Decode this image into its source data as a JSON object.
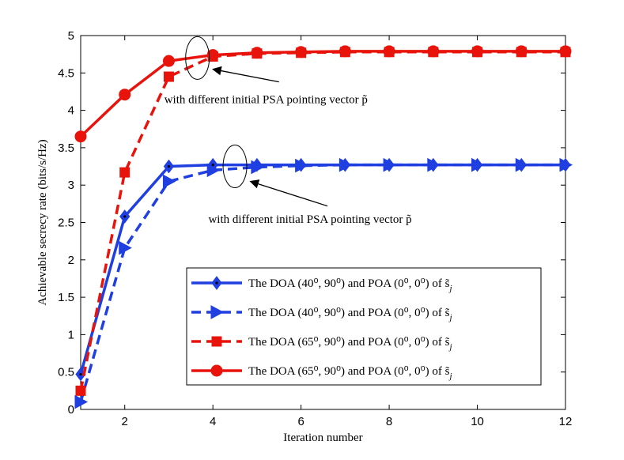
{
  "chart_data": {
    "type": "line",
    "title": "",
    "xlabel": "Iteration number",
    "ylabel": "Achievable secrecy rate (bits/s/Hz)",
    "xlim": [
      1,
      12
    ],
    "ylim": [
      0,
      5
    ],
    "xticks": [
      2,
      4,
      6,
      8,
      10,
      12
    ],
    "yticks": [
      0,
      0.5,
      1,
      1.5,
      2,
      2.5,
      3,
      3.5,
      4,
      4.5,
      5
    ],
    "grid": false,
    "legend_position": "bottom-right",
    "x": [
      1,
      2,
      3,
      4,
      5,
      6,
      7,
      8,
      9,
      10,
      11,
      12
    ],
    "series": [
      {
        "name": "The DOA (40^0, 90^0) and POA (0^0, 0^0) of s~_j",
        "legend_text": "The DOA (40⁰, 90⁰) and POA (0⁰, 0⁰) of s̃",
        "color": "#1f3fe0",
        "line": "solid",
        "marker": "diamond",
        "values": [
          0.47,
          2.58,
          3.25,
          3.27,
          3.27,
          3.27,
          3.27,
          3.27,
          3.27,
          3.27,
          3.27,
          3.27
        ]
      },
      {
        "name": "The DOA (40^0, 90^0) and POA (0^0, 0^0) of s~_j",
        "legend_text": "The DOA (40⁰, 90⁰) and POA (0⁰, 0⁰) of s̃",
        "color": "#1f3fe0",
        "line": "dashed",
        "marker": "triangle-right",
        "values": [
          0.1,
          2.16,
          3.05,
          3.2,
          3.24,
          3.26,
          3.27,
          3.27,
          3.27,
          3.27,
          3.27,
          3.27
        ]
      },
      {
        "name": "The DOA (65^0, 90^0) and POA (0^0, 0^0) of s~_j",
        "legend_text": "The DOA (65⁰, 90⁰) and POA (0⁰, 0⁰) of s̃",
        "color": "#e8140c",
        "line": "dashed",
        "marker": "square",
        "values": [
          0.25,
          3.17,
          4.45,
          4.72,
          4.76,
          4.77,
          4.78,
          4.78,
          4.78,
          4.78,
          4.78,
          4.78
        ]
      },
      {
        "name": "The DOA (65^0, 90^0) and POA (0^0, 0^0) of s~_j",
        "legend_text": "The DOA (65⁰, 90⁰) and POA (0⁰, 0⁰) of s̃",
        "color": "#e8140c",
        "line": "solid",
        "marker": "circle",
        "values": [
          3.65,
          4.21,
          4.66,
          4.74,
          4.77,
          4.78,
          4.79,
          4.79,
          4.79,
          4.79,
          4.79,
          4.79
        ]
      }
    ],
    "annotations": [
      {
        "text": "with different initial PSA pointing vector p̃",
        "ellipse_center": [
          3.65,
          4.7
        ],
        "arrow_to": [
          4.0,
          4.55
        ],
        "arrow_from": [
          5.5,
          4.38
        ],
        "text_at": [
          2.0,
          4.15
        ]
      },
      {
        "text": "with different initial PSA pointing vector p̃",
        "ellipse_center": [
          4.5,
          3.25
        ],
        "arrow_to": [
          4.85,
          3.05
        ],
        "arrow_from": [
          6.6,
          2.72
        ],
        "text_at": [
          3.0,
          2.55
        ]
      }
    ],
    "legend_subscript": "j"
  }
}
